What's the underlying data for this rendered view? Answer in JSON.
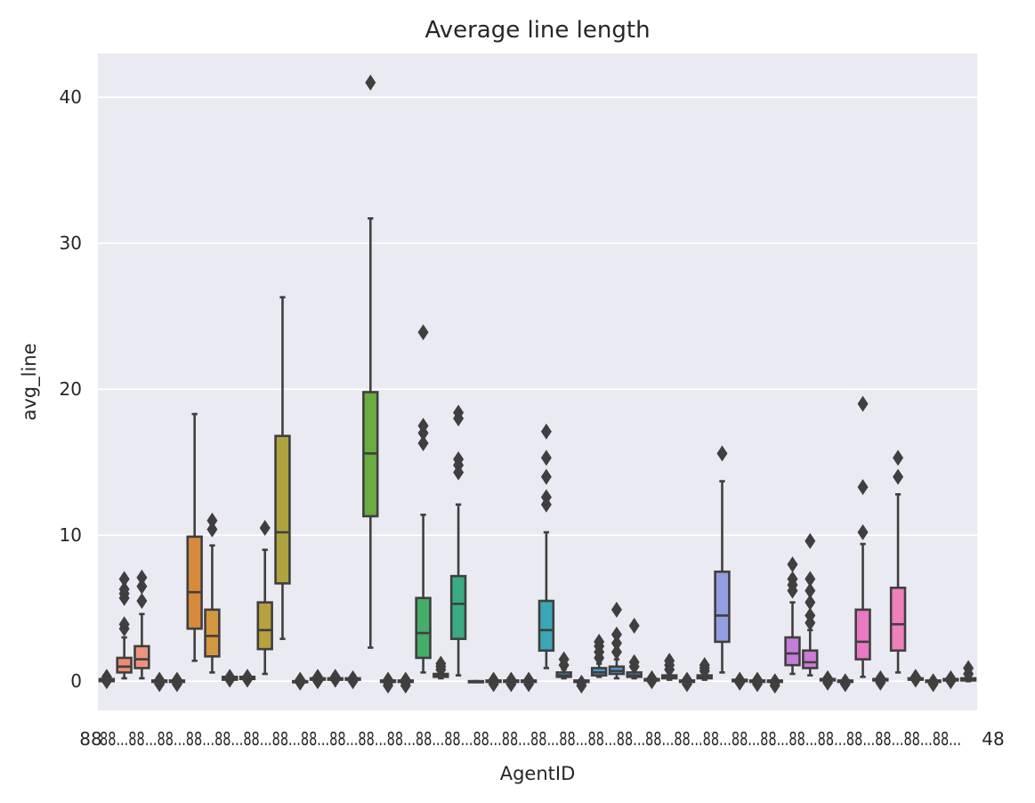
{
  "chart_data": {
    "type": "box",
    "title": "Average line length",
    "xlabel": "AgentID",
    "ylabel": "avg_line",
    "ylim": [
      -2,
      43
    ],
    "yticks": [
      0,
      10,
      20,
      30,
      40
    ],
    "grid": true,
    "background_color": "#eaeaf2",
    "line_color": "#3f3f3f",
    "tick_labels_overlapping": "88...",
    "tick_label_first": "88",
    "tick_label_last": "48",
    "boxes": [
      {
        "min": 0.0,
        "q1": 0.0,
        "median": 0.05,
        "q3": 0.15,
        "max": 0.25,
        "outliers": [
          0.0,
          0.1,
          0.2,
          0.3
        ],
        "color": "#f4766e"
      },
      {
        "min": 0.2,
        "q1": 0.6,
        "median": 1.0,
        "q3": 1.6,
        "max": 3.0,
        "outliers": [
          3.6,
          3.9,
          5.7,
          6.0,
          6.3,
          7.0
        ],
        "color": "#ef8a72"
      },
      {
        "min": 0.2,
        "q1": 0.9,
        "median": 1.5,
        "q3": 2.4,
        "max": 4.6,
        "outliers": [
          5.5,
          6.5,
          7.1
        ],
        "color": "#f0937e"
      },
      {
        "min": -0.1,
        "q1": -0.05,
        "median": 0.0,
        "q3": 0.05,
        "max": 0.1,
        "outliers": [
          -0.2,
          -0.1,
          0.0,
          0.1
        ],
        "color": "#e8946b"
      },
      {
        "min": -0.1,
        "q1": -0.05,
        "median": 0.0,
        "q3": 0.05,
        "max": 0.1,
        "outliers": [
          -0.2,
          -0.1,
          0.0,
          0.1
        ],
        "color": "#e8945f"
      },
      {
        "min": 1.4,
        "q1": 3.6,
        "median": 6.1,
        "q3": 9.9,
        "max": 18.3,
        "outliers": [],
        "color": "#d88a3c"
      },
      {
        "min": 0.6,
        "q1": 1.7,
        "median": 3.1,
        "q3": 4.9,
        "max": 9.3,
        "outliers": [
          10.4,
          11.0
        ],
        "color": "#d4973e"
      },
      {
        "min": 0.1,
        "q1": 0.1,
        "median": 0.2,
        "q3": 0.3,
        "max": 0.4,
        "outliers": [
          0.1,
          0.3
        ],
        "color": "#c99a3f"
      },
      {
        "min": 0.1,
        "q1": 0.15,
        "median": 0.2,
        "q3": 0.3,
        "max": 0.4,
        "outliers": [
          0.1,
          0.3
        ],
        "color": "#bfa040"
      },
      {
        "min": 0.5,
        "q1": 2.2,
        "median": 3.5,
        "q3": 5.4,
        "max": 9.0,
        "outliers": [
          10.5
        ],
        "color": "#b8a13f"
      },
      {
        "min": 2.9,
        "q1": 6.7,
        "median": 10.2,
        "q3": 16.8,
        "max": 26.3,
        "outliers": [],
        "color": "#afa33f"
      },
      {
        "min": 0.0,
        "q1": 0.0,
        "median": 0.0,
        "q3": 0.0,
        "max": 0.1,
        "outliers": [
          -0.1,
          0.0,
          0.1
        ],
        "color": "#a3a440"
      },
      {
        "min": 0.1,
        "q1": 0.1,
        "median": 0.15,
        "q3": 0.2,
        "max": 0.3,
        "outliers": [
          0.0,
          0.2,
          0.3
        ],
        "color": "#99a540"
      },
      {
        "min": 0.1,
        "q1": 0.1,
        "median": 0.15,
        "q3": 0.2,
        "max": 0.3,
        "outliers": [
          0.1,
          0.2,
          0.3
        ],
        "color": "#8ca73f"
      },
      {
        "min": 0.1,
        "q1": 0.1,
        "median": 0.15,
        "q3": 0.2,
        "max": 0.3,
        "outliers": [
          0.0,
          0.1,
          0.2
        ],
        "color": "#7fa93f"
      },
      {
        "min": 2.3,
        "q1": 11.3,
        "median": 15.6,
        "q3": 19.8,
        "max": 31.7,
        "outliers": [
          41.0
        ],
        "color": "#6aac3f"
      },
      {
        "min": -0.1,
        "q1": -0.05,
        "median": 0.0,
        "q3": 0.05,
        "max": 0.1,
        "outliers": [
          -0.3,
          -0.1,
          0.1
        ],
        "color": "#55ad4d"
      },
      {
        "min": -0.1,
        "q1": -0.05,
        "median": 0.0,
        "q3": 0.05,
        "max": 0.1,
        "outliers": [
          -0.3,
          -0.1,
          0.1
        ],
        "color": "#4cae5c"
      },
      {
        "min": 0.6,
        "q1": 1.6,
        "median": 3.3,
        "q3": 5.7,
        "max": 11.4,
        "outliers": [
          16.3,
          17.0,
          17.5,
          23.9
        ],
        "color": "#46ad6a"
      },
      {
        "min": 0.2,
        "q1": 0.3,
        "median": 0.4,
        "q3": 0.5,
        "max": 0.6,
        "outliers": [
          0.8,
          1.0,
          1.2
        ],
        "color": "#42ac78"
      },
      {
        "min": 0.4,
        "q1": 2.9,
        "median": 5.3,
        "q3": 7.2,
        "max": 12.1,
        "outliers": [
          14.3,
          14.8,
          15.2,
          18.0,
          18.4
        ],
        "color": "#3aab84"
      },
      {
        "min": 0.0,
        "q1": 0.0,
        "median": 0.0,
        "q3": 0.0,
        "max": 0.0,
        "outliers": [],
        "color": "#38aa8f"
      },
      {
        "min": -0.1,
        "q1": -0.05,
        "median": 0.0,
        "q3": 0.05,
        "max": 0.1,
        "outliers": [
          -0.2,
          0.0,
          0.1
        ],
        "color": "#38aa9a"
      },
      {
        "min": -0.1,
        "q1": -0.05,
        "median": 0.0,
        "q3": 0.05,
        "max": 0.1,
        "outliers": [
          -0.2,
          0.0,
          0.1
        ],
        "color": "#38a9a4"
      },
      {
        "min": -0.1,
        "q1": -0.05,
        "median": 0.0,
        "q3": 0.05,
        "max": 0.1,
        "outliers": [
          -0.2,
          0.0,
          0.1
        ],
        "color": "#38a8ad"
      },
      {
        "min": 0.9,
        "q1": 2.1,
        "median": 3.5,
        "q3": 5.5,
        "max": 10.2,
        "outliers": [
          12.1,
          12.6,
          14.0,
          15.3,
          17.1
        ],
        "color": "#3aa6b6"
      },
      {
        "min": 0.2,
        "q1": 0.3,
        "median": 0.4,
        "q3": 0.6,
        "max": 0.8,
        "outliers": [
          1.1,
          1.5
        ],
        "color": "#3ca4bf"
      },
      {
        "min": -0.1,
        "q1": -0.05,
        "median": 0.0,
        "q3": 0.05,
        "max": 0.1,
        "outliers": [
          -0.3,
          -0.1
        ],
        "color": "#3fa1c8"
      },
      {
        "min": 0.3,
        "q1": 0.4,
        "median": 0.6,
        "q3": 0.9,
        "max": 1.2,
        "outliers": [
          1.6,
          2.0,
          2.4,
          2.7
        ],
        "color": "#459dd0"
      },
      {
        "min": 0.2,
        "q1": 0.5,
        "median": 0.7,
        "q3": 1.0,
        "max": 1.5,
        "outliers": [
          2.0,
          2.6,
          3.2,
          4.9
        ],
        "color": "#4e99d6"
      },
      {
        "min": 0.2,
        "q1": 0.3,
        "median": 0.4,
        "q3": 0.6,
        "max": 0.9,
        "outliers": [
          1.0,
          1.3,
          3.8
        ],
        "color": "#5894dc"
      },
      {
        "min": 0.0,
        "q1": 0.05,
        "median": 0.1,
        "q3": 0.15,
        "max": 0.2,
        "outliers": [
          0.0,
          0.2
        ],
        "color": "#6490df"
      },
      {
        "min": 0.1,
        "q1": 0.2,
        "median": 0.3,
        "q3": 0.4,
        "max": 0.6,
        "outliers": [
          0.8,
          1.1,
          1.4
        ],
        "color": "#718ce1"
      },
      {
        "min": -0.1,
        "q1": -0.05,
        "median": 0.0,
        "q3": 0.05,
        "max": 0.1,
        "outliers": [
          -0.2,
          0.0,
          0.1
        ],
        "color": "#7e88e2"
      },
      {
        "min": 0.1,
        "q1": 0.2,
        "median": 0.3,
        "q3": 0.4,
        "max": 0.6,
        "outliers": [
          0.7,
          0.9,
          1.1
        ],
        "color": "#8a8be3"
      },
      {
        "min": 0.6,
        "q1": 2.7,
        "median": 4.5,
        "q3": 7.5,
        "max": 13.7,
        "outliers": [
          15.6
        ],
        "color": "#949ee3"
      },
      {
        "min": 0.0,
        "q1": 0.0,
        "median": 0.05,
        "q3": 0.1,
        "max": 0.15,
        "outliers": [
          -0.1,
          0.1
        ],
        "color": "#a086e2"
      },
      {
        "min": -0.1,
        "q1": -0.05,
        "median": 0.0,
        "q3": 0.05,
        "max": 0.1,
        "outliers": [
          -0.2,
          0.0,
          0.1
        ],
        "color": "#ab83e0"
      },
      {
        "min": -0.1,
        "q1": -0.05,
        "median": 0.0,
        "q3": 0.05,
        "max": 0.1,
        "outliers": [
          -0.3,
          -0.1,
          0.0
        ],
        "color": "#b780dd"
      },
      {
        "min": 0.5,
        "q1": 1.1,
        "median": 1.9,
        "q3": 3.0,
        "max": 5.4,
        "outliers": [
          6.2,
          6.6,
          7.0,
          8.0
        ],
        "color": "#c47dd9"
      },
      {
        "min": 0.4,
        "q1": 0.9,
        "median": 1.3,
        "q3": 2.1,
        "max": 3.5,
        "outliers": [
          4.0,
          4.5,
          5.4,
          6.2,
          7.0,
          9.6
        ],
        "color": "#cf7ad5"
      },
      {
        "min": 0.0,
        "q1": 0.05,
        "median": 0.1,
        "q3": 0.15,
        "max": 0.2,
        "outliers": [
          -0.1,
          0.1,
          0.2
        ],
        "color": "#da78cf"
      },
      {
        "min": -0.1,
        "q1": -0.05,
        "median": 0.0,
        "q3": 0.05,
        "max": 0.1,
        "outliers": [
          -0.2,
          -0.1,
          0.0
        ],
        "color": "#e276c8"
      },
      {
        "min": 0.3,
        "q1": 1.5,
        "median": 2.7,
        "q3": 4.9,
        "max": 9.4,
        "outliers": [
          10.2,
          13.3,
          19.0
        ],
        "color": "#e979c3"
      },
      {
        "min": 0.0,
        "q1": 0.05,
        "median": 0.1,
        "q3": 0.15,
        "max": 0.2,
        "outliers": [
          -0.1,
          0.1,
          0.2
        ],
        "color": "#ed7cbf"
      },
      {
        "min": 0.6,
        "q1": 2.1,
        "median": 3.9,
        "q3": 6.4,
        "max": 12.8,
        "outliers": [
          14.0,
          15.3
        ],
        "color": "#ef80bb"
      },
      {
        "min": 0.1,
        "q1": 0.1,
        "median": 0.15,
        "q3": 0.2,
        "max": 0.3,
        "outliers": [
          0.1,
          0.2,
          0.3
        ],
        "color": "#f082b5"
      },
      {
        "min": -0.1,
        "q1": -0.05,
        "median": 0.0,
        "q3": 0.05,
        "max": 0.1,
        "outliers": [
          -0.2,
          -0.1,
          0.0
        ],
        "color": "#f285af"
      },
      {
        "min": 0.0,
        "q1": 0.05,
        "median": 0.1,
        "q3": 0.15,
        "max": 0.2,
        "outliers": [
          0.0,
          0.1,
          0.2
        ],
        "color": "#f388a8"
      },
      {
        "min": 0.0,
        "q1": 0.05,
        "median": 0.1,
        "q3": 0.2,
        "max": 0.3,
        "outliers": [
          0.5,
          0.9
        ],
        "color": "#f48aa0"
      }
    ]
  }
}
